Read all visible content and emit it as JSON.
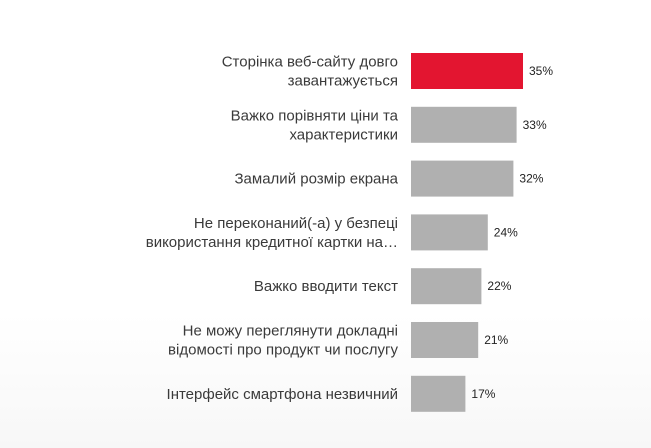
{
  "chart_data": {
    "type": "bar",
    "orientation": "horizontal",
    "title": "",
    "xlabel": "",
    "ylabel": "",
    "xlim": [
      0,
      35
    ],
    "grid": false,
    "legend": "none",
    "categories": [
      [
        "Сторінка веб-сайту довго",
        "завантажується"
      ],
      [
        "Важко порівняти ціни та",
        "характеристики"
      ],
      [
        "Замалий  розмір екрана"
      ],
      [
        "Не переконаний(-а)  у безпеці",
        "використання  кредитної  картки на…"
      ],
      [
        "Важко вводити текст"
      ],
      [
        "Не можу переглянути докладні",
        "відомості про продукт чи послугу"
      ],
      [
        "Інтерфейс  смартфона незвичний"
      ]
    ],
    "values": [
      35,
      33,
      32,
      24,
      22,
      21,
      17
    ],
    "value_labels": [
      "35%",
      "33%",
      "32%",
      "24%",
      "22%",
      "21%",
      "17%"
    ],
    "highlight_index": 0
  },
  "colors": {
    "highlight": "#e31530",
    "bar": "#b0b0b0",
    "text": "#3a3a3a",
    "value_text": "#222222"
  }
}
